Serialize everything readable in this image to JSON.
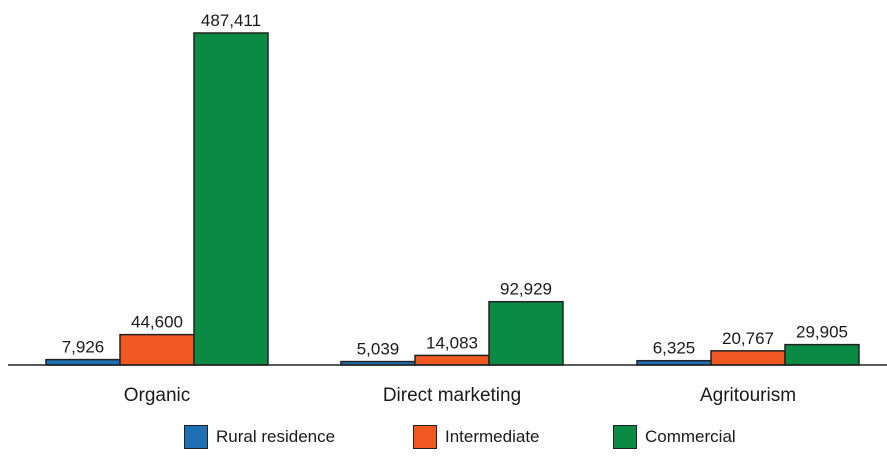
{
  "chart_data": {
    "type": "bar",
    "categories": [
      "Organic",
      "Direct marketing",
      "Agritourism"
    ],
    "series": [
      {
        "name": "Rural residence",
        "color": "#1f6fb4",
        "values": [
          7926,
          5039,
          6325
        ],
        "labels": [
          "7,926",
          "5,039",
          "6,325"
        ]
      },
      {
        "name": "Intermediate",
        "color": "#f05a22",
        "values": [
          44600,
          14083,
          20767
        ],
        "labels": [
          "44,600",
          "14,083",
          "20,767"
        ]
      },
      {
        "name": "Commercial",
        "color": "#0b8a43",
        "values": [
          487411,
          92929,
          29905
        ],
        "labels": [
          "487,411",
          "92,929",
          "29,905"
        ]
      }
    ],
    "title": "",
    "xlabel": "",
    "ylabel": "",
    "ylim": [
      0,
      487411
    ],
    "grid": false,
    "legend_position": "bottom"
  }
}
